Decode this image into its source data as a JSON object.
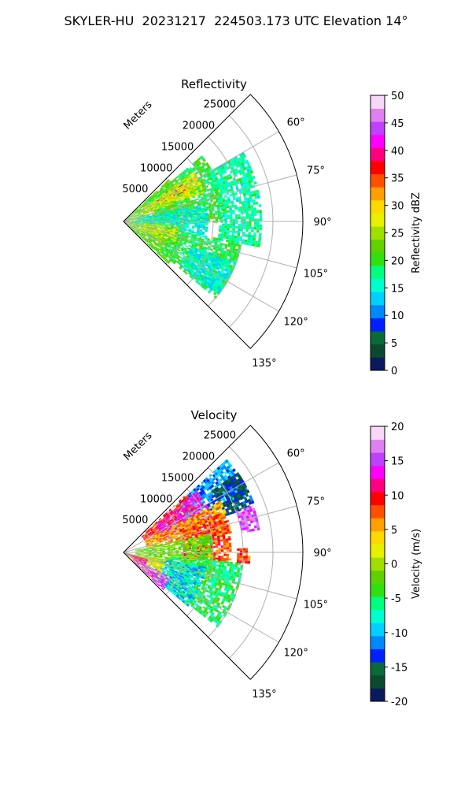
{
  "figure": {
    "title": "SKYLER-HU  20231217  224503.173 UTC Elevation 14°"
  },
  "chart_data": [
    {
      "type": "heatmap",
      "subtype": "polar-sector (PPI radar sweep)",
      "title": "Reflectivity",
      "radial_axis_label": "Meters",
      "radial_ticks": [
        5000,
        10000,
        15000,
        20000,
        25000
      ],
      "radial_limit": [
        0,
        30000
      ],
      "angle_ticks": [
        "60°",
        "75°",
        "90°",
        "105°",
        "120°",
        "135°"
      ],
      "angle_range_deg": [
        45,
        135
      ],
      "angle_convention": "compass azimuth (0° up, clockwise)",
      "grid": true,
      "colorbar": {
        "label": "Reflectivity dBZ",
        "range": [
          0,
          50
        ],
        "ticks": [
          0,
          5,
          10,
          15,
          20,
          25,
          30,
          35,
          40,
          45,
          50
        ],
        "colors": [
          "#0b1a5e",
          "#0b4a2e",
          "#0a6a3a",
          "#0020ff",
          "#0088ff",
          "#00d0ff",
          "#00ffd0",
          "#00ff80",
          "#30e010",
          "#60d000",
          "#a0e000",
          "#e8f000",
          "#ffd800",
          "#ffa000",
          "#ff5000",
          "#ff0000",
          "#ff0080",
          "#ff00ff",
          "#c040ff",
          "#e080f0",
          "#f8d8f8"
        ]
      },
      "field_regions": [
        {
          "az_min": 47,
          "az_max": 133,
          "r_min": 0,
          "r_max": 10000,
          "value": 22
        },
        {
          "az_min": 50,
          "az_max": 90,
          "r_min": 5000,
          "r_max": 17000,
          "value": 20
        },
        {
          "az_min": 58,
          "az_max": 64,
          "r_min": 6500,
          "r_max": 12000,
          "value": 36
        },
        {
          "az_min": 55,
          "az_max": 70,
          "r_min": 4000,
          "r_max": 14000,
          "value": 27
        },
        {
          "az_min": 78,
          "az_max": 100,
          "r_min": 2000,
          "r_max": 14000,
          "value": 15
        },
        {
          "az_min": 60,
          "az_max": 100,
          "r_min": 16000,
          "r_max": 23000,
          "value": 17
        },
        {
          "az_min": 100,
          "az_max": 130,
          "r_min": 8000,
          "r_max": 20000,
          "value": 19
        },
        {
          "az_min": 110,
          "az_max": 128,
          "r_min": 12000,
          "r_max": 20000,
          "value": 15
        },
        {
          "az_min": 95,
          "az_max": 115,
          "r_min": 3000,
          "r_max": 9000,
          "value": 26
        }
      ]
    },
    {
      "type": "heatmap",
      "subtype": "polar-sector (PPI radar sweep)",
      "title": "Velocity",
      "radial_axis_label": "Meters",
      "radial_ticks": [
        5000,
        10000,
        15000,
        20000,
        25000
      ],
      "radial_limit": [
        0,
        30000
      ],
      "angle_ticks": [
        "60°",
        "75°",
        "90°",
        "105°",
        "120°",
        "135°"
      ],
      "angle_range_deg": [
        45,
        135
      ],
      "angle_convention": "compass azimuth (0° up, clockwise)",
      "grid": true,
      "colorbar": {
        "label": "Velocity (m/s)",
        "range": [
          -20,
          20
        ],
        "ticks": [
          -20,
          -15,
          -10,
          -5,
          0,
          5,
          10,
          15,
          20
        ],
        "colors": [
          "#0b1a5e",
          "#0b4a2e",
          "#0a6a3a",
          "#0020ff",
          "#0088ff",
          "#00d0ff",
          "#00ffd0",
          "#00ff80",
          "#30e010",
          "#60d000",
          "#a0e000",
          "#e8f000",
          "#ffd800",
          "#ffa000",
          "#ff5000",
          "#ff0000",
          "#ff0080",
          "#ff00ff",
          "#c040ff",
          "#e080f0",
          "#f8d8f8"
        ]
      },
      "field_regions": [
        {
          "az_min": 48,
          "az_max": 66,
          "r_min": 12000,
          "r_max": 23000,
          "value": -11
        },
        {
          "az_min": 55,
          "az_max": 70,
          "r_min": 18000,
          "r_max": 23000,
          "value": -15
        },
        {
          "az_min": 47,
          "az_max": 70,
          "r_min": 4000,
          "r_max": 14000,
          "value": 9
        },
        {
          "az_min": 50,
          "az_max": 72,
          "r_min": 7000,
          "r_max": 16000,
          "value": 14
        },
        {
          "az_min": 62,
          "az_max": 80,
          "r_min": 4000,
          "r_max": 18000,
          "value": 5
        },
        {
          "az_min": 68,
          "az_max": 95,
          "r_min": 10000,
          "r_max": 18000,
          "value": 8
        },
        {
          "az_min": 78,
          "az_max": 108,
          "r_min": 2000,
          "r_max": 15000,
          "value": -2
        },
        {
          "az_min": 95,
          "az_max": 128,
          "r_min": 8000,
          "r_max": 20000,
          "value": -5
        },
        {
          "az_min": 100,
          "az_max": 130,
          "r_min": 6000,
          "r_max": 14000,
          "value": -9
        },
        {
          "az_min": 100,
          "az_max": 133,
          "r_min": 500,
          "r_max": 7000,
          "value": 2
        },
        {
          "az_min": 118,
          "az_max": 133,
          "r_min": 2000,
          "r_max": 9000,
          "value": 16
        },
        {
          "az_min": 105,
          "az_max": 122,
          "r_min": 200,
          "r_max": 4000,
          "value": 12
        },
        {
          "az_min": 70,
          "az_max": 80,
          "r_min": 20000,
          "r_max": 23000,
          "value": 16
        },
        {
          "az_min": 88,
          "az_max": 95,
          "r_min": 19000,
          "r_max": 21000,
          "value": 8
        }
      ]
    }
  ]
}
